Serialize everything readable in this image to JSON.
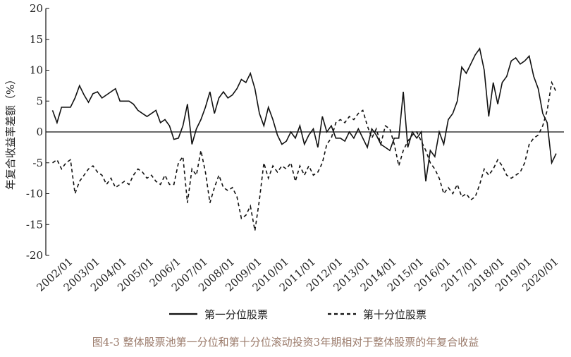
{
  "chart_data": {
    "type": "line",
    "title": "图4-3 整体股票池第一分位和第十分位滚动投资3年期相对于整体股票的年复合收益",
    "y_label": "年复合收益率差额（%）",
    "categories": [
      null,
      null,
      null,
      null,
      "2002/01",
      null,
      null,
      null,
      null,
      null,
      "2003/01",
      null,
      null,
      null,
      null,
      null,
      "2004/01",
      null,
      null,
      null,
      null,
      null,
      "2005/01",
      null,
      null,
      null,
      null,
      null,
      "2006/1",
      null,
      null,
      null,
      null,
      null,
      "2007/01",
      null,
      null,
      null,
      null,
      null,
      "2008/01",
      null,
      null,
      null,
      null,
      null,
      "2009/01",
      null,
      null,
      null,
      null,
      null,
      "2010/01",
      null,
      null,
      null,
      null,
      null,
      "2011/01",
      null,
      null,
      null,
      null,
      null,
      "2012/01",
      null,
      null,
      null,
      null,
      null,
      "2013/01",
      null,
      null,
      null,
      null,
      null,
      "2014/01",
      null,
      null,
      null,
      null,
      null,
      "2015/01",
      null,
      null,
      null,
      null,
      null,
      "2016/01",
      null,
      null,
      null,
      null,
      null,
      "2017/01",
      null,
      null,
      null,
      null,
      null,
      "2018/01",
      null,
      null,
      null,
      null,
      null,
      "2019/01",
      null,
      null,
      null,
      null,
      null,
      "2020/01"
    ],
    "series": [
      {
        "name": "第一分位股票",
        "color": "#111111",
        "style": "solid",
        "values": [
          3.5,
          1.5,
          4,
          4,
          4,
          5.5,
          7.5,
          6,
          4.8,
          6.2,
          6.5,
          5.5,
          6,
          6.5,
          7,
          5,
          5,
          5,
          4.5,
          3.5,
          3,
          2.5,
          3,
          3.5,
          1.5,
          2,
          1,
          -1.2,
          -1,
          1,
          4.5,
          -2,
          0.5,
          2,
          4,
          6.5,
          3,
          5.5,
          6.5,
          5.5,
          6,
          7,
          8.5,
          8,
          9.5,
          7,
          3,
          1,
          4,
          2,
          -0.5,
          -2,
          -1.5,
          0,
          -1,
          1,
          -2,
          -0.5,
          0.5,
          -2.5,
          2.5,
          0,
          1,
          -1,
          -1,
          -1.5,
          0,
          -1,
          0.5,
          -1,
          -2.5,
          0.5,
          -0.5,
          -2,
          -2.5,
          -3,
          -1,
          -1,
          6.5,
          -2.5,
          0,
          -1,
          0,
          -8,
          -3,
          -4,
          0,
          -2,
          2,
          3,
          5,
          10.5,
          9.5,
          11,
          12.5,
          13.5,
          10,
          2.5,
          8,
          4.5,
          8,
          9,
          11.5,
          12,
          11,
          11.5,
          12.3,
          9,
          7,
          3,
          1.5,
          -5,
          -3.5
        ]
      },
      {
        "name": "第十分位股票",
        "color": "#111111",
        "style": "dashed",
        "values": [
          -5,
          -4.5,
          -6,
          -5,
          -4.5,
          -10,
          -8,
          -7,
          -6,
          -5.5,
          -6.5,
          -7,
          -8.5,
          -7.5,
          -9,
          -8.5,
          -8,
          -8.5,
          -7,
          -6,
          -6.5,
          -7.5,
          -7,
          -8,
          -8.5,
          -7,
          -8.5,
          -8.5,
          -5,
          -4,
          -11.5,
          -6,
          -7,
          -3,
          -6.5,
          -11.5,
          -9,
          -7,
          -9,
          -9.5,
          -9,
          -10.5,
          -14,
          -13.5,
          -12,
          -16,
          -11,
          -5,
          -7.5,
          -5.5,
          -6.5,
          -5.5,
          -6,
          -5,
          -8,
          -5.5,
          -7,
          -5.5,
          -7,
          -6.5,
          -5,
          -2,
          -1,
          1.5,
          2,
          1.5,
          2.5,
          2,
          3,
          3.5,
          1,
          -1,
          0.5,
          -2,
          1,
          0.5,
          -2,
          -5.5,
          -3,
          -1.5,
          -0.5,
          0,
          -1.5,
          -3,
          -5,
          -6,
          -7.5,
          -10,
          -9,
          -10,
          -8.5,
          -10.5,
          -10,
          -11,
          -10.5,
          -8.5,
          -6,
          -7,
          -6,
          -4.5,
          -5.5,
          -7,
          -7.5,
          -7,
          -6.5,
          -5,
          -2,
          -1,
          -0.5,
          1,
          3.5,
          8,
          6.5
        ]
      }
    ],
    "ylim": [
      -20,
      20
    ],
    "yticks": [
      -20,
      -15,
      -10,
      -5,
      0,
      5,
      10,
      15,
      20
    ]
  }
}
